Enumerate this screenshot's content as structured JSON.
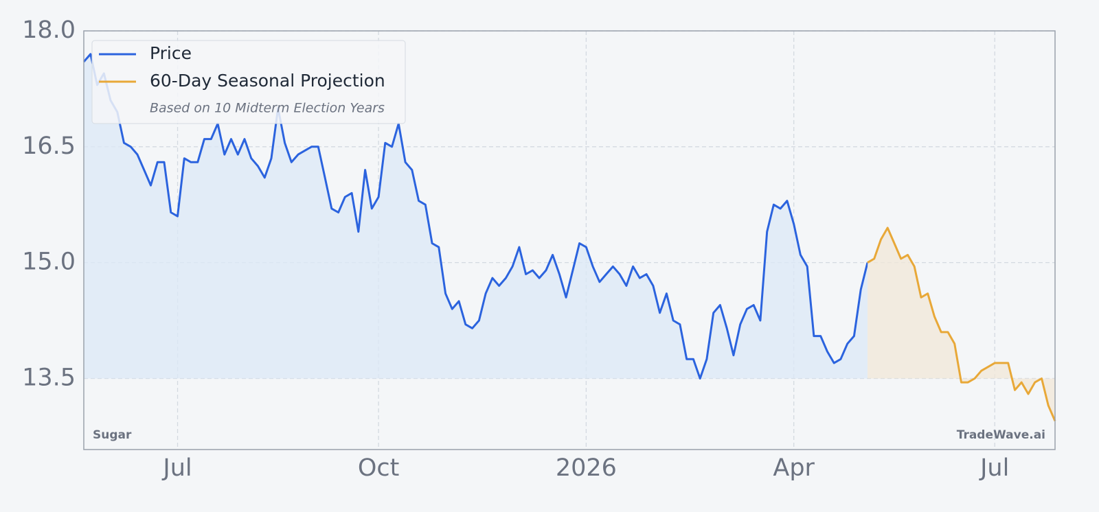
{
  "chart_data": {
    "type": "line",
    "categories": [
      null,
      null,
      null,
      null,
      null,
      null,
      null,
      null,
      null,
      null,
      null,
      null,
      null,
      null,
      "Jul",
      null,
      null,
      null,
      null,
      null,
      null,
      null,
      null,
      null,
      null,
      null,
      null,
      null,
      null,
      null,
      null,
      null,
      null,
      null,
      null,
      null,
      null,
      null,
      null,
      null,
      null,
      null,
      null,
      null,
      "Oct",
      null,
      null,
      null,
      null,
      null,
      null,
      null,
      null,
      null,
      null,
      null,
      null,
      null,
      null,
      null,
      null,
      null,
      null,
      null,
      null,
      null,
      null,
      null,
      null,
      null,
      null,
      null,
      null,
      null,
      null,
      "2026",
      null,
      null,
      null,
      null,
      null,
      null,
      null,
      null,
      null,
      null,
      null,
      null,
      null,
      null,
      null,
      null,
      null,
      null,
      null,
      null,
      null,
      null,
      null,
      null,
      null,
      null,
      null,
      null,
      null,
      null,
      "Apr",
      null,
      null,
      null,
      null,
      null,
      null,
      null,
      null,
      null,
      null,
      null,
      null,
      null,
      null,
      null,
      null,
      null,
      null,
      null,
      null,
      null,
      null,
      null,
      null,
      null,
      null,
      null,
      null,
      null,
      "Jul",
      null,
      null,
      null,
      null,
      null,
      null,
      null,
      null,
      null
    ],
    "series": [
      {
        "name": "Price",
        "color": "#2b63de",
        "values": [
          17.6,
          17.7,
          17.3,
          17.45,
          17.1,
          16.95,
          16.55,
          16.5,
          16.4,
          16.2,
          16.0,
          16.3,
          16.3,
          15.65,
          15.6,
          16.35,
          16.3,
          16.3,
          16.6,
          16.6,
          16.8,
          16.4,
          16.6,
          16.4,
          16.6,
          16.35,
          16.25,
          16.1,
          16.35,
          17.0,
          16.55,
          16.3,
          16.4,
          16.45,
          16.5,
          16.5,
          16.1,
          15.7,
          15.65,
          15.85,
          15.9,
          15.4,
          16.2,
          15.7,
          15.85,
          16.55,
          16.5,
          16.8,
          16.3,
          16.2,
          15.8,
          15.75,
          15.25,
          15.2,
          14.6,
          14.4,
          14.5,
          14.2,
          14.15,
          14.25,
          14.6,
          14.8,
          14.7,
          14.8,
          14.95,
          15.2,
          14.85,
          14.9,
          14.8,
          14.9,
          15.1,
          14.85,
          14.55,
          14.9,
          15.25,
          15.2,
          14.95,
          14.75,
          14.85,
          14.95,
          14.85,
          14.7,
          14.95,
          14.8,
          14.85,
          14.7,
          14.35,
          14.6,
          14.25,
          14.2,
          13.75,
          13.75,
          13.5,
          13.75,
          14.35,
          14.45,
          14.15,
          13.8,
          14.2,
          14.4,
          14.45,
          14.25,
          15.4,
          15.75,
          15.7,
          15.8,
          15.5,
          15.1,
          14.95,
          14.05,
          14.05,
          13.85,
          13.7,
          13.75,
          13.95,
          14.05,
          14.65,
          15.0,
          null,
          null,
          null,
          null,
          null,
          null,
          null,
          null,
          null,
          null,
          null,
          null,
          null,
          null,
          null,
          null,
          null,
          null,
          null,
          null,
          null,
          null,
          null,
          null,
          null,
          null,
          null,
          null
        ]
      },
      {
        "name": "60-Day Seasonal Projection",
        "color": "#e8a838",
        "values": [
          null,
          null,
          null,
          null,
          null,
          null,
          null,
          null,
          null,
          null,
          null,
          null,
          null,
          null,
          null,
          null,
          null,
          null,
          null,
          null,
          null,
          null,
          null,
          null,
          null,
          null,
          null,
          null,
          null,
          null,
          null,
          null,
          null,
          null,
          null,
          null,
          null,
          null,
          null,
          null,
          null,
          null,
          null,
          null,
          null,
          null,
          null,
          null,
          null,
          null,
          null,
          null,
          null,
          null,
          null,
          null,
          null,
          null,
          null,
          null,
          null,
          null,
          null,
          null,
          null,
          null,
          null,
          null,
          null,
          null,
          null,
          null,
          null,
          null,
          null,
          null,
          null,
          null,
          null,
          null,
          null,
          null,
          null,
          null,
          null,
          null,
          null,
          null,
          null,
          null,
          null,
          null,
          null,
          null,
          null,
          null,
          null,
          null,
          null,
          null,
          null,
          null,
          null,
          null,
          null,
          null,
          null,
          null,
          null,
          null,
          null,
          null,
          null,
          null,
          null,
          null,
          null,
          15.0,
          15.05,
          15.3,
          15.45,
          15.25,
          15.05,
          15.1,
          14.95,
          14.55,
          14.6,
          14.3,
          14.1,
          14.1,
          13.95,
          13.45,
          13.45,
          13.5,
          13.6,
          13.65,
          13.7,
          13.7,
          13.7,
          13.35,
          13.45,
          13.3,
          13.45,
          13.5,
          13.15,
          12.95
        ]
      }
    ],
    "legend_note": "Based on 10 Midterm Election Years",
    "commodity": "Sugar",
    "watermark": "TradeWave.ai",
    "ylim": [
      12.58,
      18.0
    ],
    "yticks": [
      13.5,
      {
        "value": 15,
        "label": "15.0"
      },
      16.5,
      {
        "value": 18,
        "label": "18.0"
      }
    ],
    "grid": true,
    "legend": "upper left"
  }
}
